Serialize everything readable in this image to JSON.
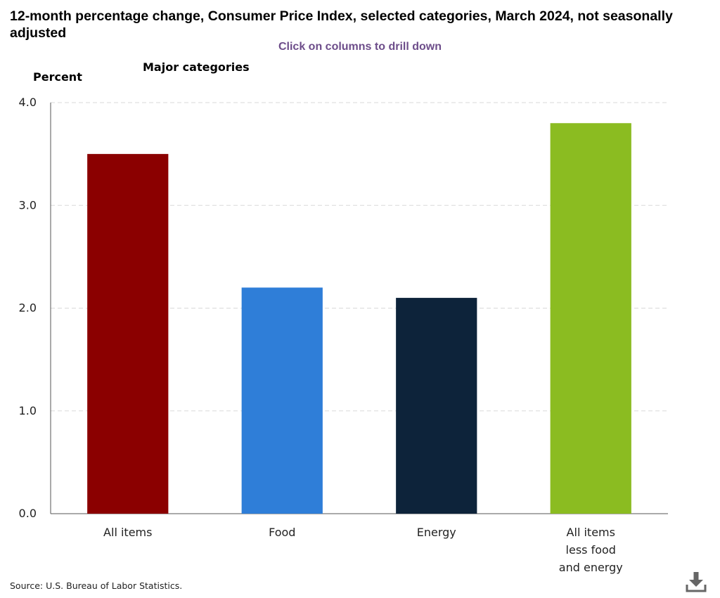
{
  "header": {
    "title": "12-month percentage change, Consumer Price Index, selected categories, March 2024, not seasonally adjusted",
    "instruction": "Click on columns to drill down"
  },
  "footer": {
    "source": "Source: U.S. Bureau of Labor Statistics.",
    "download_icon": "download-icon"
  },
  "chart_data": {
    "type": "bar",
    "title": "12-month percentage change, Consumer Price Index, selected categories, March 2024, not seasonally adjusted",
    "subtitle": "Major categories",
    "ylabel": "Percent",
    "xlabel": "",
    "ylim": [
      0,
      4
    ],
    "yticks": [
      "0.0",
      "1.0",
      "2.0",
      "3.0",
      "4.0"
    ],
    "grid": true,
    "categories": [
      [
        "All items"
      ],
      [
        "Food"
      ],
      [
        "Energy"
      ],
      [
        "All items",
        "less food",
        "and energy"
      ]
    ],
    "values": [
      3.5,
      2.2,
      2.1,
      3.8
    ],
    "colors": [
      "#8b0000",
      "#2f7ed8",
      "#0d233a",
      "#8bbc21"
    ]
  }
}
